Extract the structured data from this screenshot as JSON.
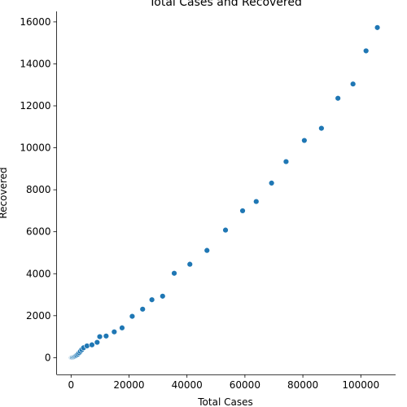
{
  "chart_data": {
    "type": "scatter",
    "title": "Total Cases and Recovered",
    "xlabel": "Total Cases",
    "ylabel": "Recovered",
    "xlim": [
      -5000,
      112000
    ],
    "ylim": [
      -800,
      16500
    ],
    "xticks": [
      0,
      20000,
      40000,
      60000,
      80000,
      100000
    ],
    "yticks": [
      0,
      2000,
      4000,
      6000,
      8000,
      10000,
      12000,
      14000,
      16000
    ],
    "grid": false,
    "marker_color": "#1f77b4",
    "points": [
      {
        "x": 0,
        "y": 0
      },
      {
        "x": 150,
        "y": 0
      },
      {
        "x": 300,
        "y": 5
      },
      {
        "x": 500,
        "y": 10
      },
      {
        "x": 800,
        "y": 20
      },
      {
        "x": 1100,
        "y": 40
      },
      {
        "x": 1400,
        "y": 60
      },
      {
        "x": 1700,
        "y": 90
      },
      {
        "x": 2000,
        "y": 120
      },
      {
        "x": 2400,
        "y": 170
      },
      {
        "x": 2800,
        "y": 230
      },
      {
        "x": 3200,
        "y": 300
      },
      {
        "x": 3700,
        "y": 380
      },
      {
        "x": 4300,
        "y": 470
      },
      {
        "x": 5500,
        "y": 560
      },
      {
        "x": 7200,
        "y": 610
      },
      {
        "x": 9000,
        "y": 730
      },
      {
        "x": 9900,
        "y": 1000
      },
      {
        "x": 12100,
        "y": 1030
      },
      {
        "x": 14900,
        "y": 1230
      },
      {
        "x": 17600,
        "y": 1420
      },
      {
        "x": 21100,
        "y": 1970
      },
      {
        "x": 24700,
        "y": 2310
      },
      {
        "x": 27900,
        "y": 2760
      },
      {
        "x": 31600,
        "y": 2930
      },
      {
        "x": 35600,
        "y": 4020
      },
      {
        "x": 41000,
        "y": 4450
      },
      {
        "x": 46900,
        "y": 5110
      },
      {
        "x": 53300,
        "y": 6080
      },
      {
        "x": 59200,
        "y": 7000
      },
      {
        "x": 63900,
        "y": 7440
      },
      {
        "x": 69200,
        "y": 8320
      },
      {
        "x": 74200,
        "y": 9340
      },
      {
        "x": 80500,
        "y": 10350
      },
      {
        "x": 86400,
        "y": 10930
      },
      {
        "x": 92100,
        "y": 12360
      },
      {
        "x": 97300,
        "y": 13040
      },
      {
        "x": 101800,
        "y": 14620
      },
      {
        "x": 105700,
        "y": 15730
      }
    ]
  }
}
